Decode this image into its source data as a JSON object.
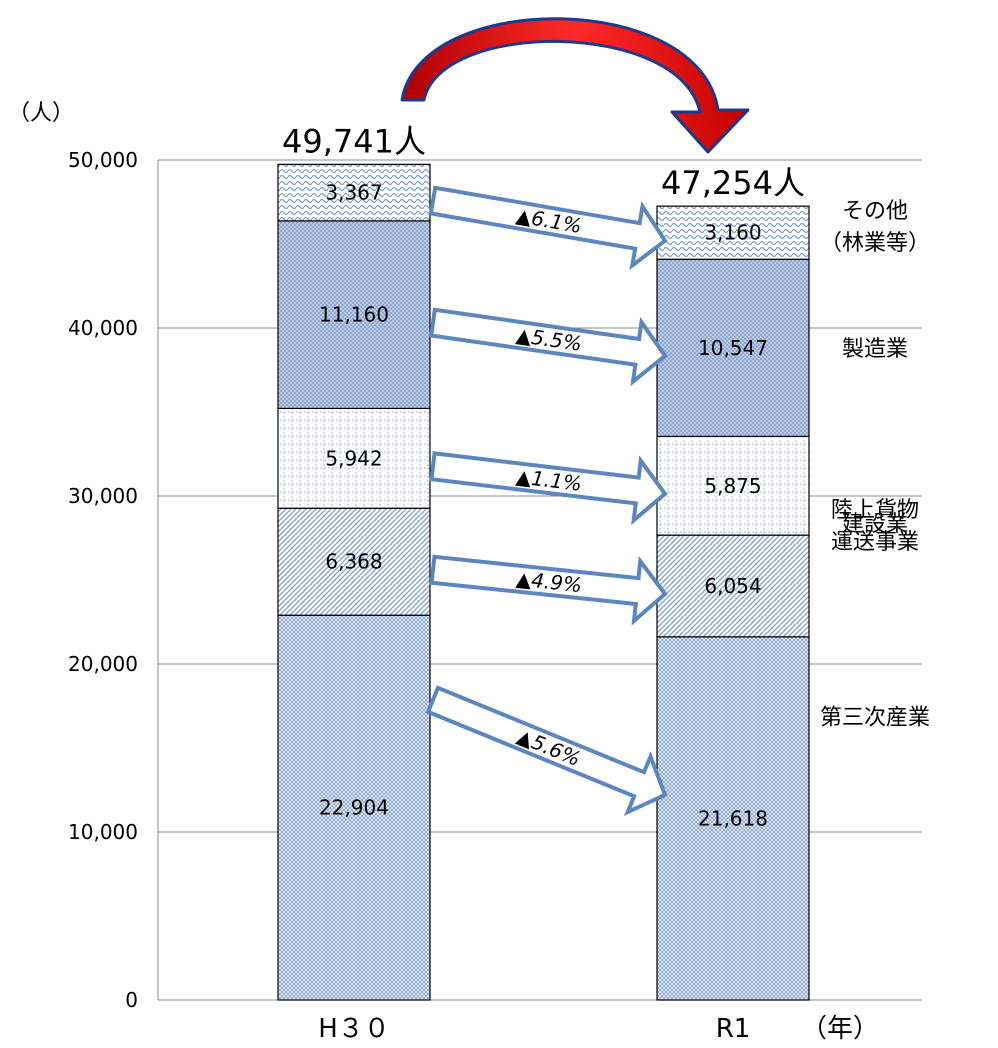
{
  "chart_data": {
    "type": "bar",
    "stacked": true,
    "ylabel": "（人）",
    "xlabel": "（年）",
    "ylim": [
      0,
      50000
    ],
    "yticks": [
      "0",
      "10,000",
      "20,000",
      "30,000",
      "40,000",
      "50,000"
    ],
    "categories": [
      "H３０",
      "R1"
    ],
    "totals": [
      {
        "value": 49741,
        "label": "49,741人"
      },
      {
        "value": 47254,
        "label": "47,254人"
      }
    ],
    "grid": true,
    "series": [
      {
        "name": "第三次産業",
        "values": [
          22904,
          21618
        ],
        "labels": [
          "22,904",
          "21,618"
        ],
        "change": "▲5.6%",
        "color": "#7f9fd0"
      },
      {
        "name": "陸上貨物運送事業",
        "name_lines": [
          "陸上貨物",
          "運送事業"
        ],
        "values": [
          6368,
          6054
        ],
        "labels": [
          "6,368",
          "6,054"
        ],
        "change": "▲4.9%",
        "color": "#b3c4dd"
      },
      {
        "name": "建設業",
        "values": [
          5942,
          5875
        ],
        "labels": [
          "5,942",
          "5,875"
        ],
        "change": "▲1.1%",
        "color": "#e6eef7"
      },
      {
        "name": "製造業",
        "values": [
          11160,
          10547
        ],
        "labels": [
          "11,160",
          "10,547"
        ],
        "change": "▲5.5%",
        "color": "#9db3d6"
      },
      {
        "name": "その他（林業等）",
        "name_lines": [
          "その他",
          "（林業等）"
        ],
        "values": [
          3367,
          3160
        ],
        "labels": [
          "3,367",
          "3,160"
        ],
        "change": "▲6.1%",
        "color": "#c8d6ea"
      }
    ]
  }
}
